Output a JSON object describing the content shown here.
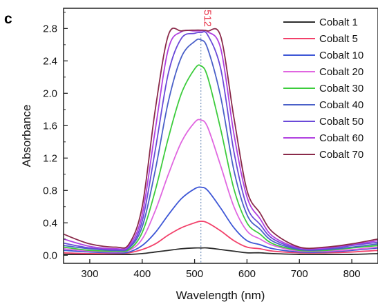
{
  "chart_data": {
    "type": "line",
    "panel_label": "c",
    "xlabel": "Wavelength (nm)",
    "ylabel": "Absorbance",
    "xlim": [
      250,
      850
    ],
    "ylim": [
      -0.1,
      3.05
    ],
    "xticks": [
      300,
      400,
      500,
      600,
      700,
      800
    ],
    "yticks": [
      0.0,
      0.4,
      0.8,
      1.2,
      1.6,
      2.0,
      2.4,
      2.8
    ],
    "ytick_labels": [
      "0.0",
      "0.4",
      "0.8",
      "1.2",
      "1.6",
      "2.0",
      "2.4",
      "2.8"
    ],
    "grid": false,
    "legend_position": "top-right",
    "annotation": {
      "text": "512",
      "x": 512,
      "color": "#e8354a"
    },
    "x": [
      250,
      300,
      350,
      375,
      400,
      425,
      450,
      475,
      500,
      512,
      525,
      550,
      575,
      600,
      625,
      650,
      700,
      750,
      800,
      850
    ],
    "series": [
      {
        "name": "Cobalt 1",
        "color": "#2b2b2b",
        "values": [
          0.01,
          0.01,
          0.01,
          0.01,
          0.02,
          0.04,
          0.06,
          0.08,
          0.09,
          0.09,
          0.09,
          0.07,
          0.05,
          0.03,
          0.03,
          0.02,
          0.01,
          0.01,
          0.01,
          0.02
        ]
      },
      {
        "name": "Cobalt 5",
        "color": "#f2406a",
        "values": [
          0.03,
          0.02,
          0.02,
          0.03,
          0.07,
          0.14,
          0.25,
          0.34,
          0.4,
          0.42,
          0.4,
          0.3,
          0.18,
          0.1,
          0.08,
          0.05,
          0.03,
          0.03,
          0.04,
          0.06
        ]
      },
      {
        "name": "Cobalt 10",
        "color": "#3d56d6",
        "values": [
          0.06,
          0.04,
          0.03,
          0.04,
          0.12,
          0.28,
          0.5,
          0.7,
          0.82,
          0.84,
          0.8,
          0.58,
          0.34,
          0.18,
          0.13,
          0.08,
          0.04,
          0.04,
          0.06,
          0.09
        ]
      },
      {
        "name": "Cobalt 20",
        "color": "#e066e0",
        "values": [
          0.08,
          0.05,
          0.04,
          0.06,
          0.2,
          0.55,
          1.0,
          1.4,
          1.64,
          1.67,
          1.58,
          1.1,
          0.6,
          0.3,
          0.2,
          0.12,
          0.05,
          0.05,
          0.07,
          0.1
        ]
      },
      {
        "name": "Cobalt 30",
        "color": "#3ccc3c",
        "values": [
          0.1,
          0.06,
          0.05,
          0.07,
          0.28,
          0.8,
          1.45,
          2.0,
          2.3,
          2.34,
          2.2,
          1.55,
          0.82,
          0.4,
          0.26,
          0.14,
          0.06,
          0.06,
          0.09,
          0.12
        ]
      },
      {
        "name": "Cobalt 40",
        "color": "#4a60c8",
        "values": [
          0.12,
          0.08,
          0.06,
          0.09,
          0.35,
          1.05,
          1.9,
          2.45,
          2.64,
          2.66,
          2.55,
          1.95,
          1.05,
          0.5,
          0.32,
          0.17,
          0.07,
          0.07,
          0.1,
          0.14
        ]
      },
      {
        "name": "Cobalt 50",
        "color": "#6a4ad8",
        "values": [
          0.15,
          0.09,
          0.07,
          0.1,
          0.42,
          1.3,
          2.25,
          2.68,
          2.74,
          2.75,
          2.72,
          2.3,
          1.28,
          0.6,
          0.38,
          0.2,
          0.08,
          0.08,
          0.12,
          0.16
        ]
      },
      {
        "name": "Cobalt 60",
        "color": "#b040e0",
        "values": [
          0.2,
          0.11,
          0.08,
          0.12,
          0.5,
          1.55,
          2.55,
          2.76,
          2.77,
          2.77,
          2.76,
          2.55,
          1.5,
          0.72,
          0.45,
          0.23,
          0.09,
          0.09,
          0.13,
          0.18
        ]
      },
      {
        "name": "Cobalt 70",
        "color": "#8a2a4a",
        "values": [
          0.26,
          0.14,
          0.1,
          0.14,
          0.6,
          1.8,
          2.72,
          2.77,
          2.78,
          2.78,
          2.77,
          2.7,
          1.7,
          0.8,
          0.52,
          0.28,
          0.1,
          0.1,
          0.14,
          0.2
        ]
      }
    ]
  }
}
